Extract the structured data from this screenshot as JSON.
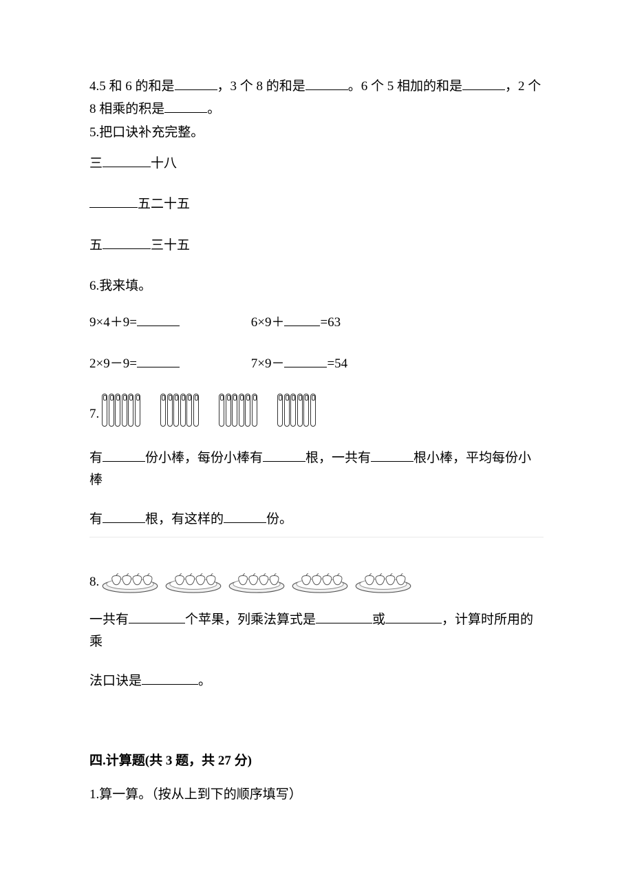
{
  "q4": {
    "pre1": "4.5 和 6 的和是",
    "mid1": "，3 个 8 的和是",
    "mid2": "。6 个 5 相加的和是",
    "mid3": "，2 个",
    "line2a": "8 相乘的积是",
    "line2b": "。"
  },
  "q5": {
    "title": "5.把口诀补充完整。",
    "l1a": "三",
    "l1b": "十八",
    "l2b": "五二十五",
    "l3a": "五",
    "l3b": "三十五"
  },
  "q6": {
    "title": "6.我来填。",
    "r1a": "9×4＋9=",
    "r1b": "6×9＋",
    "r1c": "=63",
    "r2a": "2×9－9=",
    "r2b": "7×9－",
    "r2c": "=54"
  },
  "q7": {
    "num": "7.",
    "groups": 4,
    "sticks_per_group": 6,
    "t1": "有",
    "t2": "份小棒，每份小棒有",
    "t3": "根，一共有",
    "t4": "根小棒，平均每份小棒",
    "t5": "有",
    "t6": "根，有这样的",
    "t7": "份。"
  },
  "q8": {
    "num": "8.",
    "plates": 5,
    "t1": "一共有",
    "t2": "个苹果，列乘法算式是",
    "t3": "或",
    "t4": "，计算时所用的乘",
    "t5": "法口诀是",
    "t6": "。"
  },
  "section4": {
    "title": "四.计算题(共 3 题，共 27 分)",
    "q1": "1.算一算。（按从上到下的顺序填写）"
  },
  "style": {
    "text_color": "#000000",
    "bg": "#ffffff",
    "hr_color": "#e8e8e8",
    "font_size_pt": 14
  }
}
